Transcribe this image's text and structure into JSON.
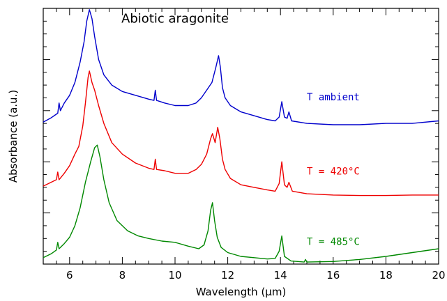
{
  "chart_data": {
    "type": "line",
    "title": "Abiotic aragonite",
    "xlabel": "Wavelength (µm)",
    "ylabel": "Absorbance (a.u.)",
    "xlim": [
      5,
      20
    ],
    "ylim": [
      0,
      10
    ],
    "x_ticks": [
      6,
      8,
      10,
      12,
      14,
      16,
      18,
      20
    ],
    "grid": false,
    "legend": "inline labels at right",
    "series": [
      {
        "name": "T ambient",
        "color": "#0000cc",
        "points": [
          [
            5.0,
            5.55
          ],
          [
            5.3,
            5.72
          ],
          [
            5.55,
            5.9
          ],
          [
            5.6,
            6.3
          ],
          [
            5.65,
            6.0
          ],
          [
            5.8,
            6.3
          ],
          [
            6.0,
            6.6
          ],
          [
            6.2,
            7.1
          ],
          [
            6.4,
            7.9
          ],
          [
            6.55,
            8.7
          ],
          [
            6.65,
            9.5
          ],
          [
            6.75,
            9.95
          ],
          [
            6.85,
            9.6
          ],
          [
            6.95,
            8.9
          ],
          [
            7.1,
            8.0
          ],
          [
            7.3,
            7.4
          ],
          [
            7.6,
            7.0
          ],
          [
            8.0,
            6.75
          ],
          [
            8.5,
            6.6
          ],
          [
            9.0,
            6.45
          ],
          [
            9.2,
            6.4
          ],
          [
            9.25,
            6.8
          ],
          [
            9.3,
            6.4
          ],
          [
            9.6,
            6.3
          ],
          [
            10.0,
            6.2
          ],
          [
            10.5,
            6.2
          ],
          [
            10.8,
            6.3
          ],
          [
            11.0,
            6.5
          ],
          [
            11.2,
            6.8
          ],
          [
            11.4,
            7.1
          ],
          [
            11.55,
            7.7
          ],
          [
            11.65,
            8.15
          ],
          [
            11.72,
            7.7
          ],
          [
            11.8,
            6.9
          ],
          [
            11.9,
            6.5
          ],
          [
            12.1,
            6.2
          ],
          [
            12.5,
            5.95
          ],
          [
            13.0,
            5.8
          ],
          [
            13.5,
            5.65
          ],
          [
            13.8,
            5.6
          ],
          [
            13.95,
            5.75
          ],
          [
            14.05,
            6.35
          ],
          [
            14.15,
            5.75
          ],
          [
            14.25,
            5.7
          ],
          [
            14.32,
            5.95
          ],
          [
            14.42,
            5.6
          ],
          [
            15.0,
            5.5
          ],
          [
            16.0,
            5.45
          ],
          [
            17.0,
            5.45
          ],
          [
            18.0,
            5.5
          ],
          [
            19.0,
            5.5
          ],
          [
            20.0,
            5.6
          ]
        ]
      },
      {
        "name": "T = 420°C",
        "color": "#ee0000",
        "points": [
          [
            5.0,
            3.05
          ],
          [
            5.3,
            3.2
          ],
          [
            5.5,
            3.3
          ],
          [
            5.55,
            3.6
          ],
          [
            5.6,
            3.3
          ],
          [
            5.8,
            3.55
          ],
          [
            6.0,
            3.85
          ],
          [
            6.2,
            4.3
          ],
          [
            6.35,
            4.6
          ],
          [
            6.5,
            5.4
          ],
          [
            6.6,
            6.3
          ],
          [
            6.7,
            7.3
          ],
          [
            6.75,
            7.55
          ],
          [
            6.85,
            7.1
          ],
          [
            6.95,
            6.8
          ],
          [
            7.1,
            6.2
          ],
          [
            7.3,
            5.5
          ],
          [
            7.6,
            4.75
          ],
          [
            8.0,
            4.3
          ],
          [
            8.5,
            3.95
          ],
          [
            9.0,
            3.75
          ],
          [
            9.2,
            3.7
          ],
          [
            9.25,
            4.1
          ],
          [
            9.3,
            3.7
          ],
          [
            9.6,
            3.65
          ],
          [
            10.0,
            3.55
          ],
          [
            10.5,
            3.55
          ],
          [
            10.8,
            3.7
          ],
          [
            11.0,
            3.9
          ],
          [
            11.2,
            4.3
          ],
          [
            11.35,
            4.9
          ],
          [
            11.42,
            5.1
          ],
          [
            11.52,
            4.75
          ],
          [
            11.62,
            5.35
          ],
          [
            11.7,
            4.9
          ],
          [
            11.8,
            4.1
          ],
          [
            11.9,
            3.7
          ],
          [
            12.1,
            3.35
          ],
          [
            12.5,
            3.1
          ],
          [
            13.0,
            3.0
          ],
          [
            13.5,
            2.9
          ],
          [
            13.8,
            2.85
          ],
          [
            13.95,
            3.15
          ],
          [
            14.05,
            4.0
          ],
          [
            14.15,
            3.1
          ],
          [
            14.25,
            3.0
          ],
          [
            14.32,
            3.2
          ],
          [
            14.45,
            2.85
          ],
          [
            15.0,
            2.75
          ],
          [
            16.0,
            2.7
          ],
          [
            17.0,
            2.68
          ],
          [
            18.0,
            2.68
          ],
          [
            19.0,
            2.7
          ],
          [
            20.0,
            2.7
          ]
        ]
      },
      {
        "name": "T = 485°C",
        "color": "#008800",
        "points": [
          [
            5.0,
            0.25
          ],
          [
            5.3,
            0.4
          ],
          [
            5.5,
            0.55
          ],
          [
            5.55,
            0.85
          ],
          [
            5.6,
            0.6
          ],
          [
            5.8,
            0.8
          ],
          [
            6.0,
            1.05
          ],
          [
            6.2,
            1.5
          ],
          [
            6.4,
            2.2
          ],
          [
            6.6,
            3.2
          ],
          [
            6.8,
            4.0
          ],
          [
            6.95,
            4.55
          ],
          [
            7.05,
            4.65
          ],
          [
            7.15,
            4.2
          ],
          [
            7.3,
            3.3
          ],
          [
            7.5,
            2.4
          ],
          [
            7.8,
            1.7
          ],
          [
            8.2,
            1.3
          ],
          [
            8.6,
            1.1
          ],
          [
            9.0,
            1.0
          ],
          [
            9.5,
            0.9
          ],
          [
            10.0,
            0.85
          ],
          [
            10.5,
            0.7
          ],
          [
            10.9,
            0.6
          ],
          [
            11.1,
            0.75
          ],
          [
            11.25,
            1.3
          ],
          [
            11.35,
            2.1
          ],
          [
            11.42,
            2.4
          ],
          [
            11.5,
            1.7
          ],
          [
            11.6,
            1.05
          ],
          [
            11.75,
            0.65
          ],
          [
            12.0,
            0.45
          ],
          [
            12.5,
            0.3
          ],
          [
            13.0,
            0.25
          ],
          [
            13.5,
            0.2
          ],
          [
            13.8,
            0.22
          ],
          [
            13.95,
            0.5
          ],
          [
            14.05,
            1.1
          ],
          [
            14.15,
            0.3
          ],
          [
            14.4,
            0.12
          ],
          [
            14.9,
            0.08
          ],
          [
            14.95,
            0.18
          ],
          [
            15.0,
            0.08
          ],
          [
            16.0,
            0.1
          ],
          [
            17.0,
            0.18
          ],
          [
            18.0,
            0.3
          ],
          [
            19.0,
            0.45
          ],
          [
            20.0,
            0.6
          ]
        ]
      }
    ],
    "series_label_positions": [
      {
        "x": 15.0,
        "y": 6.4
      },
      {
        "x": 15.0,
        "y": 3.5
      },
      {
        "x": 15.0,
        "y": 0.75
      }
    ],
    "title_position": {
      "x": 10.0,
      "y": 9.6
    }
  }
}
